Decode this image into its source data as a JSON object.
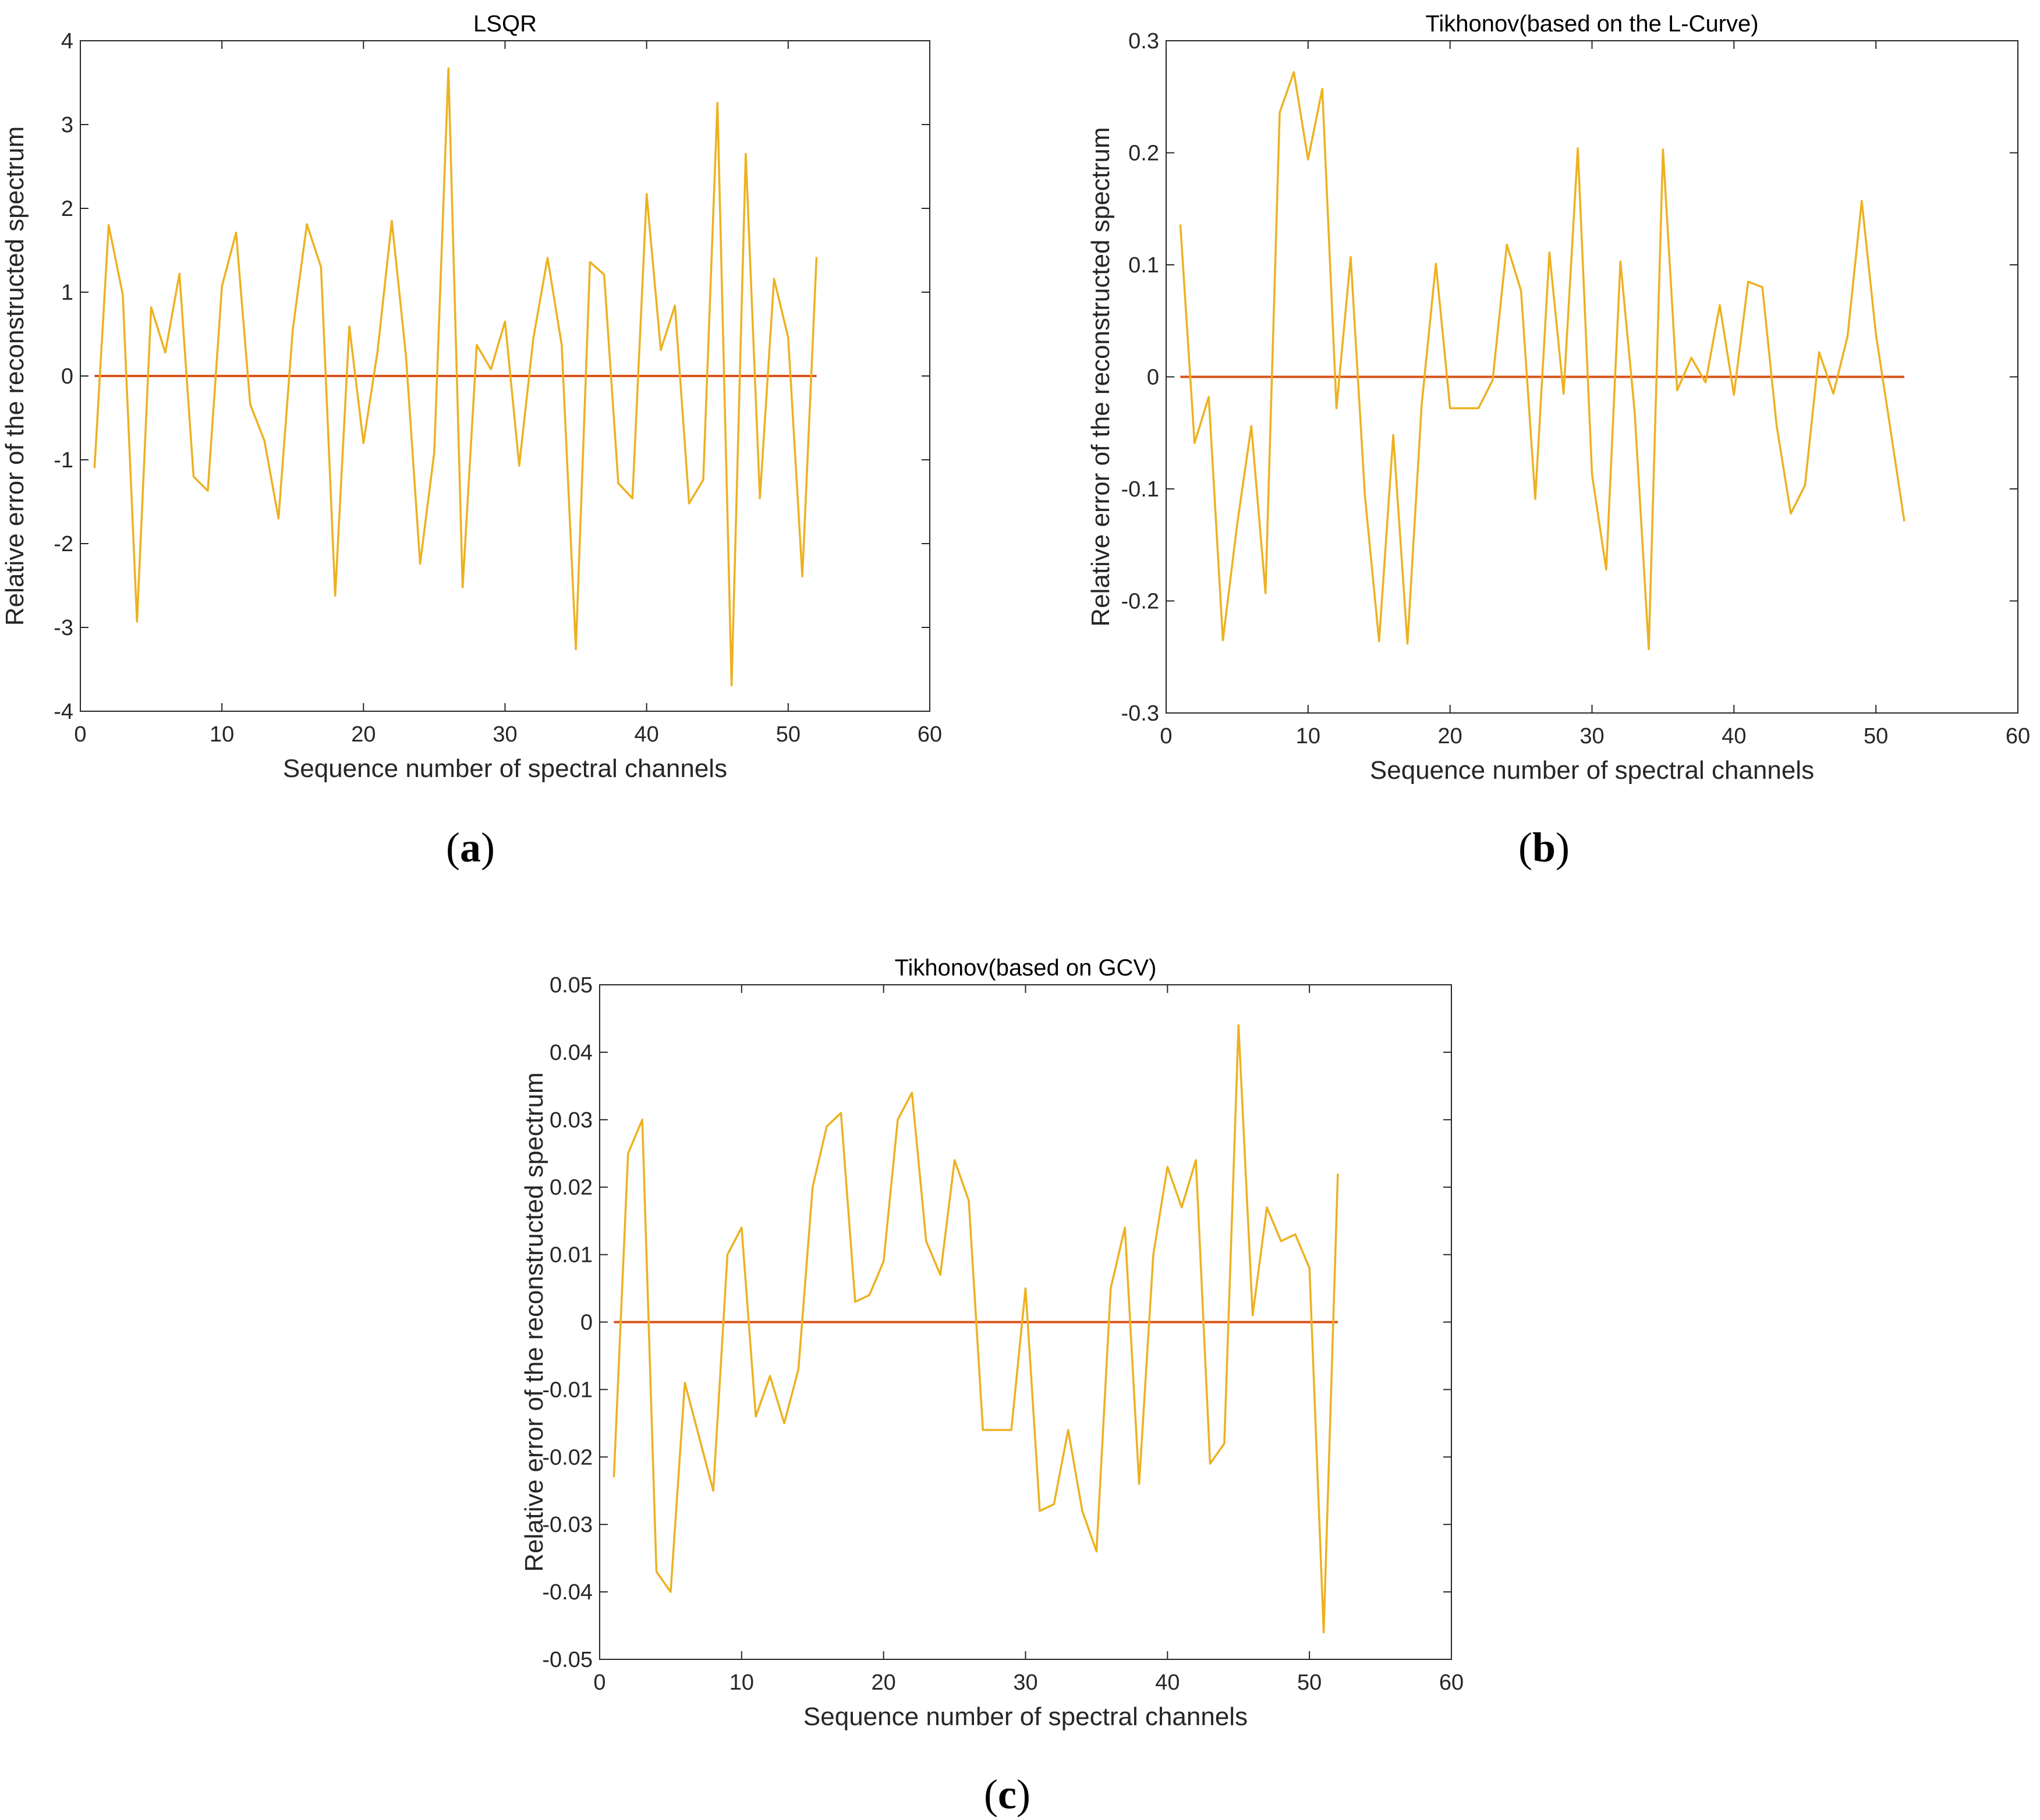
{
  "figure": {
    "panels": [
      {
        "label_open": "(",
        "label_letter": "a",
        "label_close": ")"
      },
      {
        "label_open": "(",
        "label_letter": "b",
        "label_close": ")"
      },
      {
        "label_open": "(",
        "label_letter": "c",
        "label_close": ")"
      }
    ]
  },
  "colors": {
    "error_line": "#EDB120",
    "zero_line": "#D95319",
    "axes": "#262626"
  },
  "chart_data": [
    {
      "type": "line",
      "title": "LSQR",
      "xlabel": "Sequence number of spectral channels",
      "ylabel": "Relative error of the reconstructed spectrum",
      "xlim": [
        0,
        60
      ],
      "ylim": [
        -4,
        4
      ],
      "xticks": [
        0,
        10,
        20,
        30,
        40,
        50,
        60
      ],
      "yticks": [
        -4,
        -3,
        -2,
        -1,
        0,
        1,
        2,
        3,
        4
      ],
      "xtick_labels": [
        "0",
        "10",
        "20",
        "30",
        "40",
        "50",
        "60"
      ],
      "ytick_labels": [
        "-4",
        "-3",
        "-2",
        "-1",
        "0",
        "1",
        "2",
        "3",
        "4"
      ],
      "grid": false,
      "series": [
        {
          "name": "relative error",
          "x": [
            1,
            2,
            3,
            4,
            5,
            6,
            7,
            8,
            9,
            10,
            11,
            12,
            13,
            14,
            15,
            16,
            17,
            18,
            19,
            20,
            21,
            22,
            23,
            24,
            25,
            26,
            27,
            28,
            29,
            30,
            31,
            32,
            33,
            34,
            35,
            36,
            37,
            38,
            39,
            40,
            41,
            42,
            43,
            44,
            45,
            46,
            47,
            48,
            49,
            50,
            51,
            52
          ],
          "y": [
            -1.1,
            1.8,
            0.97,
            -2.93,
            0.82,
            0.28,
            1.22,
            -1.2,
            -1.37,
            1.07,
            1.71,
            -0.34,
            -0.77,
            -1.7,
            0.55,
            1.81,
            1.3,
            -2.62,
            0.59,
            -0.8,
            0.3,
            1.85,
            0.24,
            -2.24,
            -0.91,
            3.67,
            -2.52,
            0.37,
            0.08,
            0.65,
            -1.07,
            0.45,
            1.41,
            0.37,
            -3.26,
            1.36,
            1.21,
            -1.28,
            -1.46,
            2.17,
            0.31,
            0.84,
            -1.52,
            -1.24,
            3.26,
            -3.69,
            2.65,
            -1.46,
            1.16,
            0.46,
            -2.39,
            1.42
          ]
        },
        {
          "name": "zero",
          "x": [
            1,
            52
          ],
          "y": [
            0,
            0
          ]
        }
      ]
    },
    {
      "type": "line",
      "title": "Tikhonov(based on the L-Curve)",
      "xlabel": "Sequence number of spectral channels",
      "ylabel": "Relative error of the reconstructed spectrum",
      "xlim": [
        0,
        60
      ],
      "ylim": [
        -0.3,
        0.3
      ],
      "xticks": [
        0,
        10,
        20,
        30,
        40,
        50,
        60
      ],
      "yticks": [
        -0.3,
        -0.2,
        -0.1,
        0,
        0.1,
        0.2,
        0.3
      ],
      "xtick_labels": [
        "0",
        "10",
        "20",
        "30",
        "40",
        "50",
        "60"
      ],
      "ytick_labels": [
        "-0.3",
        "-0.2",
        "-0.1",
        "0",
        "0.1",
        "0.2",
        "0.3"
      ],
      "grid": false,
      "series": [
        {
          "name": "relative error",
          "x": [
            1,
            2,
            3,
            4,
            5,
            6,
            7,
            8,
            9,
            10,
            11,
            12,
            13,
            14,
            15,
            16,
            17,
            18,
            19,
            20,
            21,
            22,
            23,
            24,
            25,
            26,
            27,
            28,
            29,
            30,
            31,
            32,
            33,
            34,
            35,
            36,
            37,
            38,
            39,
            40,
            41,
            42,
            43,
            44,
            45,
            46,
            47,
            48,
            49,
            50,
            51,
            52
          ],
          "y": [
            0.136,
            -0.059,
            -0.018,
            -0.235,
            -0.132,
            -0.044,
            -0.193,
            0.236,
            0.272,
            0.194,
            0.257,
            -0.028,
            0.107,
            -0.106,
            -0.236,
            -0.052,
            -0.238,
            -0.025,
            0.101,
            -0.028,
            -0.028,
            -0.028,
            -0.003,
            0.118,
            0.077,
            -0.109,
            0.111,
            -0.015,
            0.204,
            -0.087,
            -0.172,
            0.103,
            -0.031,
            -0.243,
            0.203,
            -0.012,
            0.017,
            -0.005,
            0.064,
            -0.016,
            0.085,
            0.08,
            -0.043,
            -0.122,
            -0.097,
            0.022,
            -0.015,
            0.036,
            0.157,
            0.038,
            -0.045,
            -0.129
          ]
        },
        {
          "name": "zero",
          "x": [
            1,
            52
          ],
          "y": [
            0,
            0
          ]
        }
      ]
    },
    {
      "type": "line",
      "title": "Tikhonov(based on GCV)",
      "xlabel": "Sequence number of spectral channels",
      "ylabel": "Relative error of the reconstructed spectrum",
      "xlim": [
        0,
        60
      ],
      "ylim": [
        -0.05,
        0.05
      ],
      "xticks": [
        0,
        10,
        20,
        30,
        40,
        50,
        60
      ],
      "yticks": [
        -0.05,
        -0.04,
        -0.03,
        -0.02,
        -0.01,
        0,
        0.01,
        0.02,
        0.03,
        0.04,
        0.05
      ],
      "xtick_labels": [
        "0",
        "10",
        "20",
        "30",
        "40",
        "50",
        "60"
      ],
      "ytick_labels": [
        "-0.05",
        "-0.04",
        "-0.03",
        "-0.02",
        "-0.01",
        "0",
        "0.01",
        "0.02",
        "0.03",
        "0.04",
        "0.05"
      ],
      "grid": false,
      "series": [
        {
          "name": "relative error",
          "x": [
            1,
            2,
            3,
            4,
            5,
            6,
            7,
            8,
            9,
            10,
            11,
            12,
            13,
            14,
            15,
            16,
            17,
            18,
            19,
            20,
            21,
            22,
            23,
            24,
            25,
            26,
            27,
            28,
            29,
            30,
            31,
            32,
            33,
            34,
            35,
            36,
            37,
            38,
            39,
            40,
            41,
            42,
            43,
            44,
            45,
            46,
            47,
            48,
            49,
            50,
            51,
            52
          ],
          "y": [
            -0.023,
            0.025,
            0.03,
            -0.037,
            -0.04,
            -0.009,
            -0.017,
            -0.025,
            0.01,
            0.014,
            -0.014,
            -0.008,
            -0.015,
            -0.007,
            0.02,
            0.029,
            0.031,
            0.003,
            0.004,
            0.009,
            0.03,
            0.034,
            0.012,
            0.007,
            0.024,
            0.018,
            -0.016,
            -0.016,
            -0.016,
            0.005,
            -0.028,
            -0.027,
            -0.016,
            -0.028,
            -0.034,
            0.005,
            0.014,
            -0.024,
            0.01,
            0.023,
            0.017,
            0.024,
            -0.021,
            -0.018,
            0.044,
            0.001,
            0.017,
            0.012,
            0.013,
            0.008,
            -0.046,
            0.022
          ]
        },
        {
          "name": "zero",
          "x": [
            1,
            52
          ],
          "y": [
            0,
            0
          ]
        }
      ]
    }
  ]
}
